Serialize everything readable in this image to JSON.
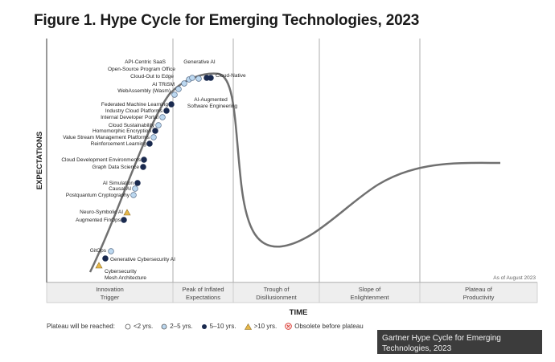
{
  "figure_title": "Figure 1. Hype Cycle for Emerging Technologies, 2023",
  "caption": "Gartner Hype Cycle for Emerging Technologies, 2023",
  "legend": {
    "title": "Plateau will be reached:",
    "items": [
      {
        "label": "<2 yrs.",
        "marker": "circle-open",
        "color": "#ffffff"
      },
      {
        "label": "2–5 yrs.",
        "marker": "circle",
        "color": "#bcd8f0"
      },
      {
        "label": "5–10 yrs.",
        "marker": "circle",
        "color": "#1a2a4f"
      },
      {
        "label": ">10 yrs.",
        "marker": "triangle",
        "color": "#e7b84a"
      },
      {
        "label": "Obsolete before plateau",
        "marker": "x-circle",
        "color": "#d9322a"
      }
    ]
  },
  "chart_data": {
    "type": "line",
    "title": "Figure 1. Hype Cycle for Emerging Technologies, 2023",
    "xlabel": "TIME",
    "ylabel": "EXPECTATIONS",
    "grid": "phase dividers",
    "annotation": "As of August 2023",
    "phases": [
      "Innovation Trigger",
      "Peak of Inflated Expectations",
      "Trough of Disillusionment",
      "Slope of Enlightenment",
      "Plateau of Productivity"
    ],
    "series": [
      {
        "name": "Cybersecurity Mesh Architecture",
        "phase": "Innovation Trigger",
        "plateau": ">10 yrs."
      },
      {
        "name": "Generative Cybersecurity AI",
        "phase": "Innovation Trigger",
        "plateau": "5–10 yrs."
      },
      {
        "name": "GitOps",
        "phase": "Innovation Trigger",
        "plateau": "2–5 yrs."
      },
      {
        "name": "Augmented FinOps",
        "phase": "Innovation Trigger",
        "plateau": "5–10 yrs."
      },
      {
        "name": "Neuro-Symbolic AI",
        "phase": "Innovation Trigger",
        "plateau": ">10 yrs."
      },
      {
        "name": "Postquantum Cryptography",
        "phase": "Innovation Trigger",
        "plateau": "2–5 yrs."
      },
      {
        "name": "Causal AI",
        "phase": "Innovation Trigger",
        "plateau": "2–5 yrs."
      },
      {
        "name": "AI Simulation",
        "phase": "Innovation Trigger",
        "plateau": "5–10 yrs."
      },
      {
        "name": "Graph Data Science",
        "phase": "Innovation Trigger",
        "plateau": "5–10 yrs."
      },
      {
        "name": "Cloud Development Environments",
        "phase": "Innovation Trigger",
        "plateau": "5–10 yrs."
      },
      {
        "name": "Reinforcement Learning",
        "phase": "Innovation Trigger",
        "plateau": "5–10 yrs."
      },
      {
        "name": "Value Stream Management Platforms",
        "phase": "Innovation Trigger",
        "plateau": "2–5 yrs."
      },
      {
        "name": "Homomorphic Encryption",
        "phase": "Innovation Trigger",
        "plateau": "5–10 yrs."
      },
      {
        "name": "Cloud Sustainability",
        "phase": "Innovation Trigger",
        "plateau": "2–5 yrs."
      },
      {
        "name": "Internal Developer Portal",
        "phase": "Innovation Trigger",
        "plateau": "2–5 yrs."
      },
      {
        "name": "Industry Cloud Platforms",
        "phase": "Innovation Trigger",
        "plateau": "5–10 yrs."
      },
      {
        "name": "Federated Machine Learning",
        "phase": "Innovation Trigger",
        "plateau": "5–10 yrs."
      },
      {
        "name": "WebAssembly (Wasm)",
        "phase": "Peak of Inflated Expectations",
        "plateau": "2–5 yrs."
      },
      {
        "name": "AI TRiSM",
        "phase": "Peak of Inflated Expectations",
        "plateau": "2–5 yrs."
      },
      {
        "name": "Cloud-Out to Edge",
        "phase": "Peak of Inflated Expectations",
        "plateau": "2–5 yrs."
      },
      {
        "name": "Open-Source Program Office",
        "phase": "Peak of Inflated Expectations",
        "plateau": "2–5 yrs."
      },
      {
        "name": "API-Centric SaaS",
        "phase": "Peak of Inflated Expectations",
        "plateau": "2–5 yrs."
      },
      {
        "name": "Generative AI",
        "phase": "Peak of Inflated Expectations",
        "plateau": "2–5 yrs."
      },
      {
        "name": "Cloud-Native",
        "phase": "Peak of Inflated Expectations",
        "plateau": "5–10 yrs."
      },
      {
        "name": "AI-Augmented Software Engineering",
        "phase": "Peak of Inflated Expectations",
        "plateau": "5–10 yrs."
      }
    ]
  }
}
